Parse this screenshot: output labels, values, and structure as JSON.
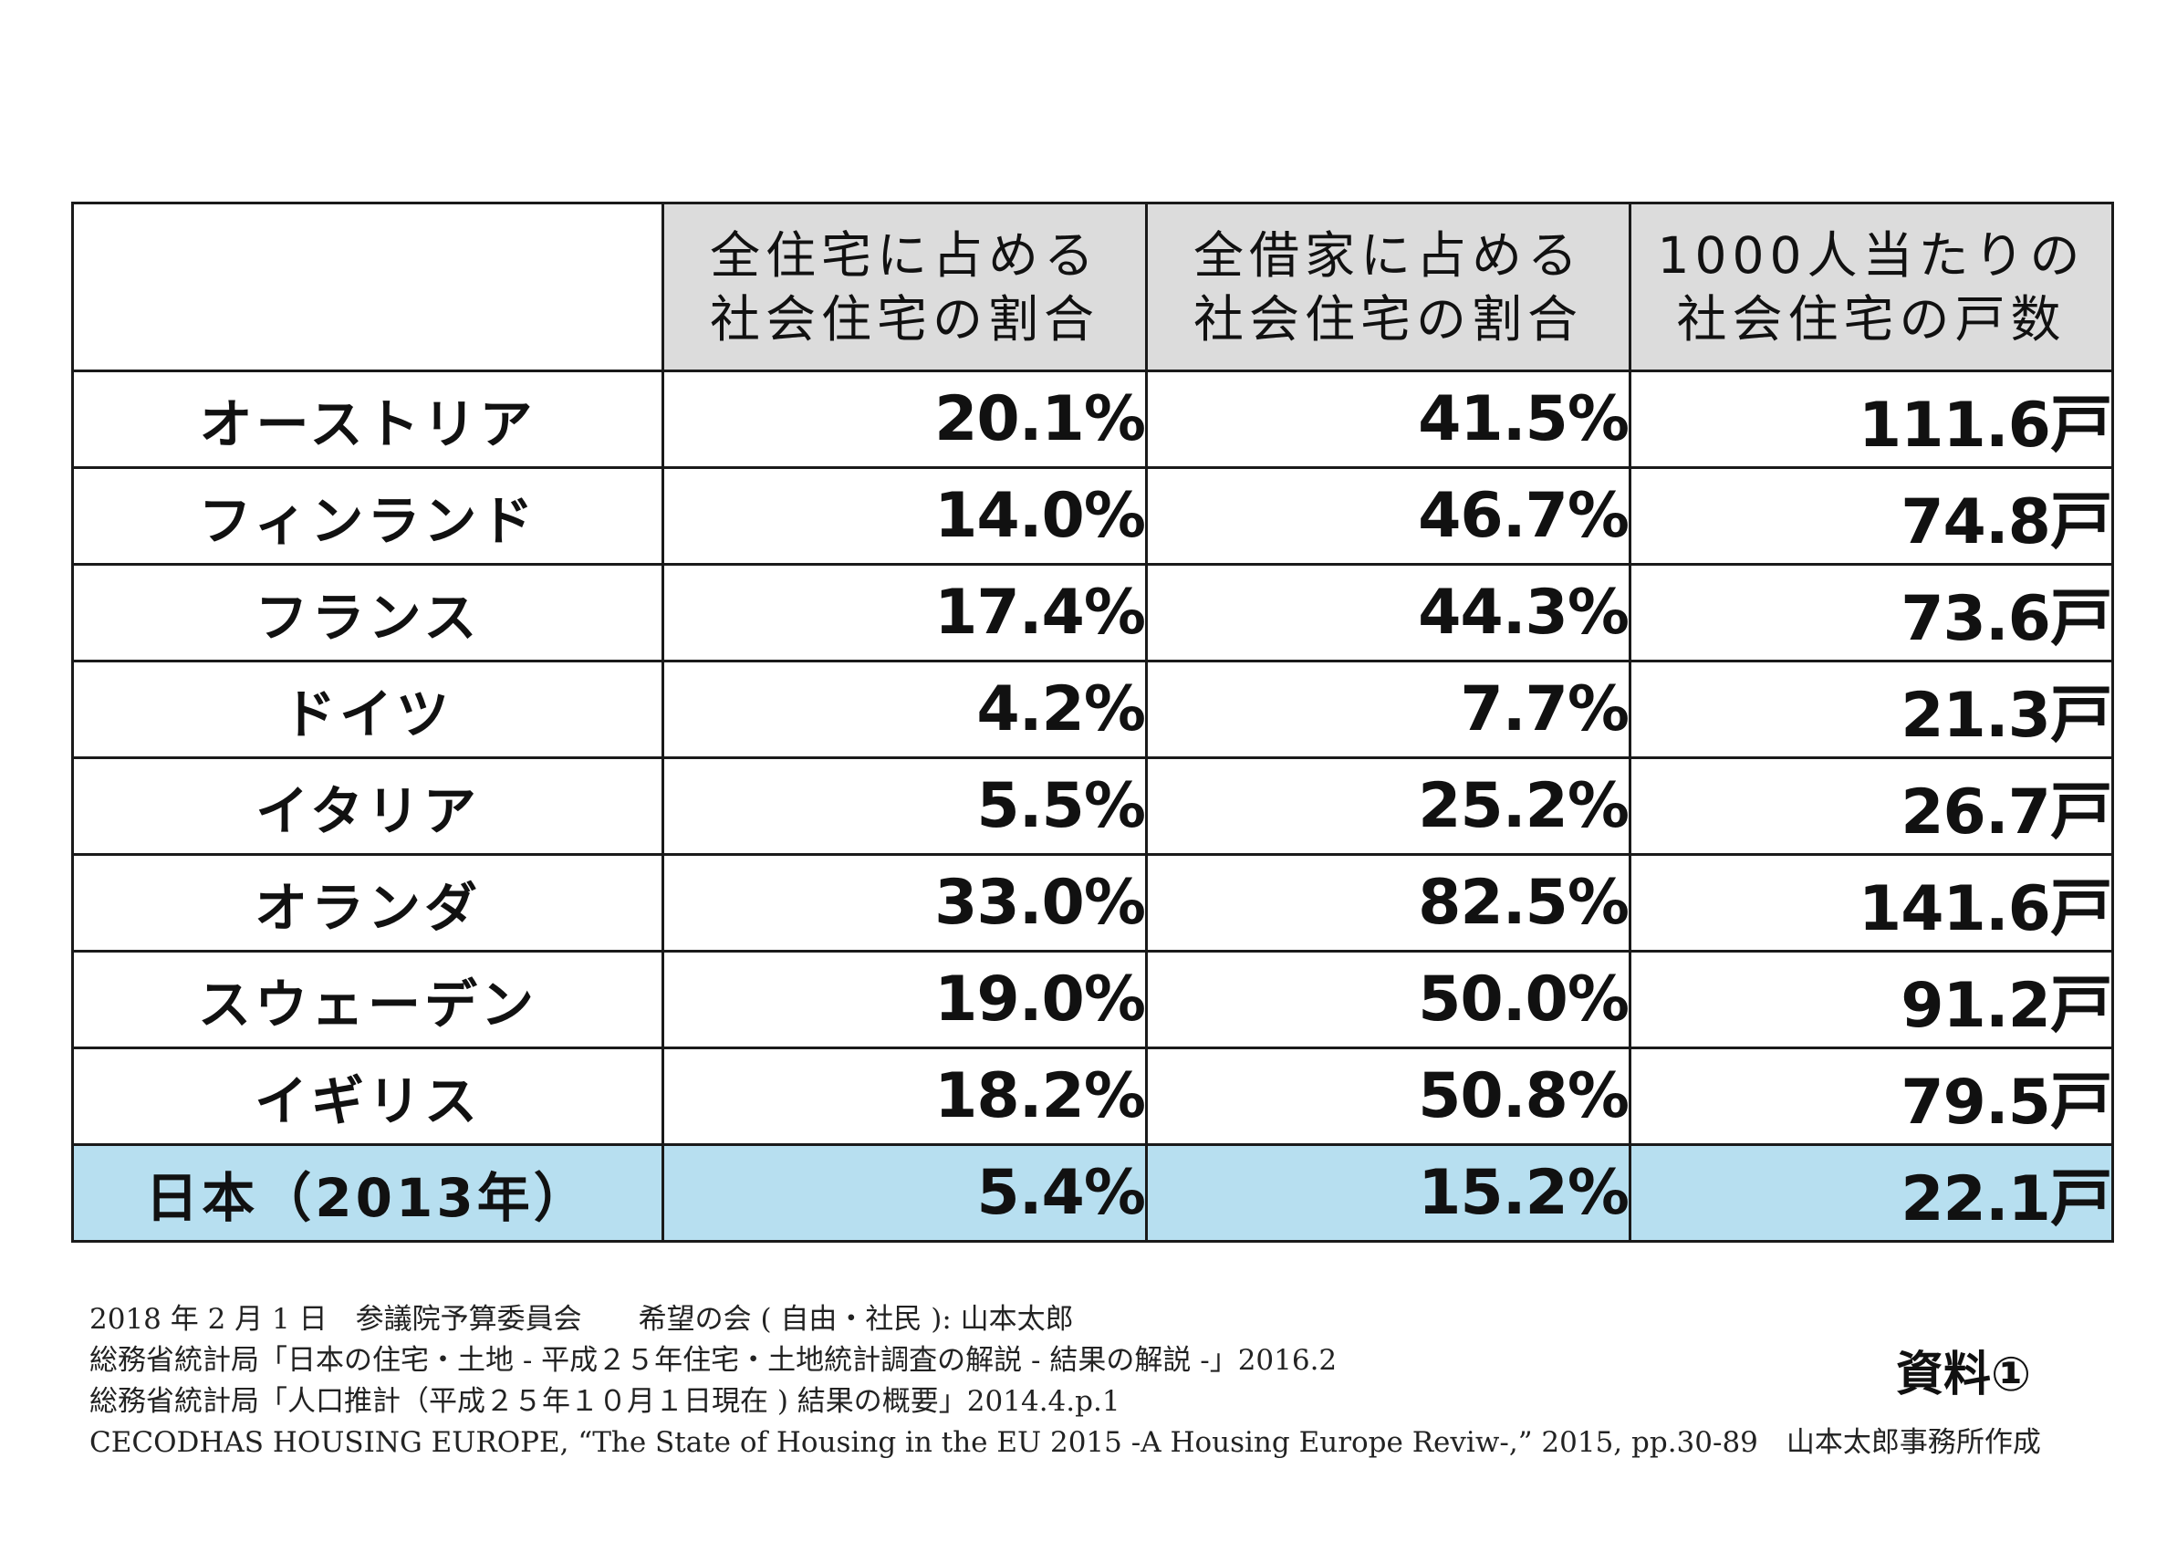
{
  "table": {
    "headers": [
      "",
      [
        "全住宅に占める",
        "社会住宅の割合"
      ],
      [
        "全借家に占める",
        "社会住宅の割合"
      ],
      [
        "1000人当たりの",
        "社会住宅の戸数"
      ]
    ],
    "rows": [
      {
        "country": "オーストリア",
        "share_all": "20.1%",
        "share_rental": "41.5%",
        "per_1000": "111.6戸"
      },
      {
        "country": "フィンランド",
        "share_all": "14.0%",
        "share_rental": "46.7%",
        "per_1000": "74.8戸"
      },
      {
        "country": "フランス",
        "share_all": "17.4%",
        "share_rental": "44.3%",
        "per_1000": "73.6戸"
      },
      {
        "country": "ドイツ",
        "share_all": "4.2%",
        "share_rental": "7.7%",
        "per_1000": "21.3戸"
      },
      {
        "country": "イタリア",
        "share_all": "5.5%",
        "share_rental": "25.2%",
        "per_1000": "26.7戸"
      },
      {
        "country": "オランダ",
        "share_all": "33.0%",
        "share_rental": "82.5%",
        "per_1000": "141.6戸"
      },
      {
        "country": "スウェーデン",
        "share_all": "19.0%",
        "share_rental": "50.0%",
        "per_1000": "91.2戸"
      },
      {
        "country": "イギリス",
        "share_all": "18.2%",
        "share_rental": "50.8%",
        "per_1000": "79.5戸"
      },
      {
        "country": "日本（2013年）",
        "share_all": "5.4%",
        "share_rental": "15.2%",
        "per_1000": "22.1戸"
      }
    ]
  },
  "highlight_color": "#b7dff0",
  "header_color": "#dcdcdc",
  "notes": [
    "2018 年 2 月 1 日　参議院予算委員会　　希望の会 ( 自由・社民 ): 山本太郎",
    "総務省統計局「日本の住宅・土地 - 平成２５年住宅・土地統計調査の解説 - 結果の解説 -」2016.2",
    "総務省統計局「人口推計（平成２５年１０月１日現在 ) 結果の概要」2014.4.p.1",
    "CECODHAS HOUSING EUROPE, “The State of Housing in the EU 2015 -A Housing Europe Reviw-,”  2015, pp.30-89　山本太郎事務所作成"
  ],
  "doc_label": "資料①"
}
